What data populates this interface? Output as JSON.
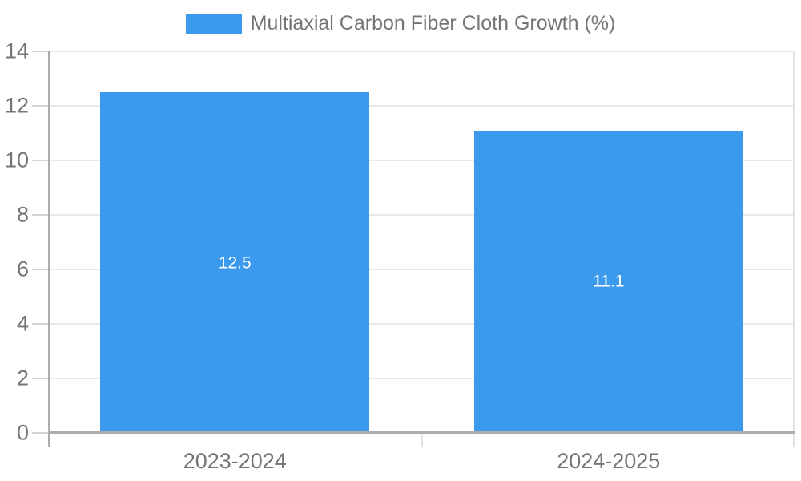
{
  "chart_data": {
    "type": "bar",
    "legend": "Multiaxial Carbon Fiber Cloth Growth (%)",
    "categories": [
      "2023-2024",
      "2024-2025"
    ],
    "values": [
      12.5,
      11.1
    ],
    "value_labels": [
      "12.5",
      "11.1"
    ],
    "ylim": [
      0,
      14
    ],
    "y_ticks": [
      0,
      2,
      4,
      6,
      8,
      10,
      12,
      14
    ],
    "y_tick_labels": [
      "0",
      "2",
      "4",
      "6",
      "8",
      "10",
      "12",
      "14"
    ],
    "grid": true,
    "legend_position": "top-center",
    "xlabel": "",
    "ylabel": "",
    "colors": {
      "bar": "#3B99EE",
      "grid": "#E9E9E9",
      "axis": "#ACACAC",
      "tick": "#D2D2D2",
      "border": "#E4E4E4",
      "text": "#757575",
      "value_label": "#FFFFFF",
      "background": "#FFFFFF"
    }
  }
}
